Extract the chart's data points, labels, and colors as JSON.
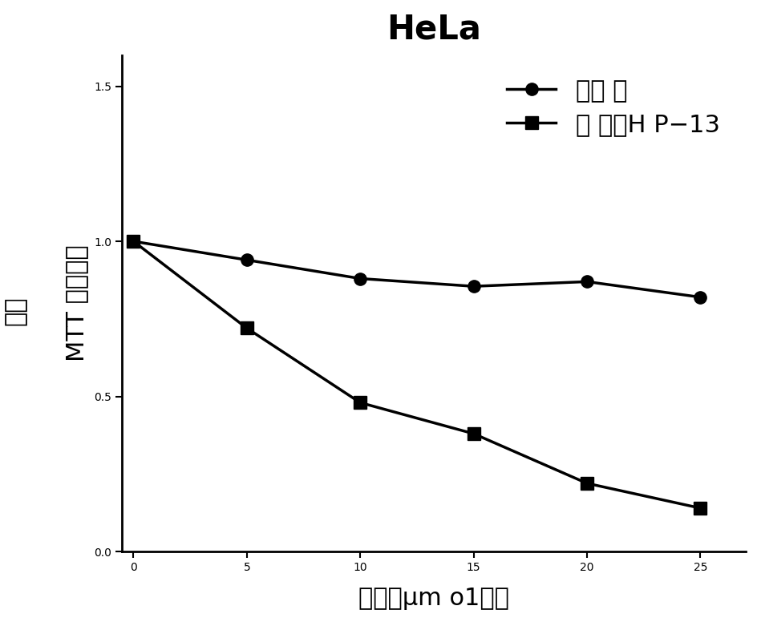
{
  "title": "HeLa",
  "xlabel": "浓度（μm o1丧）",
  "ylabel_inner": "MTT 吸光度値",
  "ylabel_outer": "相对",
  "x": [
    0,
    5,
    10,
    15,
    20,
    25
  ],
  "y_control": [
    1.0,
    0.94,
    0.88,
    0.855,
    0.87,
    0.82
  ],
  "y_target": [
    1.0,
    0.72,
    0.48,
    0.38,
    0.22,
    0.14
  ],
  "legend_control": "对照 肽",
  "legend_target": "靶 向肽H P−13",
  "ylim": [
    0.0,
    1.6
  ],
  "yticks": [
    0.0,
    0.5,
    1.0,
    1.5
  ],
  "xticks": [
    0,
    5,
    10,
    15,
    20,
    25
  ],
  "line_color": "#000000",
  "bg_color": "#ffffff",
  "title_fontsize": 30,
  "label_fontsize": 22,
  "tick_fontsize": 20,
  "legend_fontsize": 22,
  "linewidth": 2.5,
  "markersize": 11
}
